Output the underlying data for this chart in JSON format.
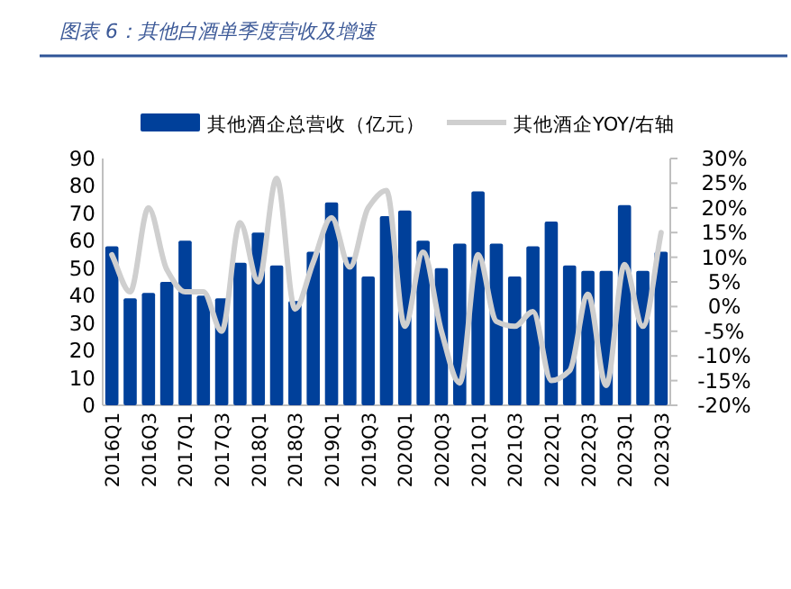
{
  "chart_data": {
    "type": "bar",
    "title": "图表 6：其他白酒单季度营收及增速",
    "categories": [
      "2016Q1",
      null,
      "2016Q3",
      null,
      "2017Q1",
      null,
      "2017Q3",
      null,
      "2018Q1",
      null,
      "2018Q3",
      null,
      "2019Q1",
      null,
      "2019Q3",
      null,
      "2020Q1",
      null,
      "2020Q3",
      null,
      "2021Q1",
      null,
      "2021Q3",
      null,
      "2022Q1",
      null,
      "2022Q3",
      null,
      "2023Q1",
      null,
      "2023Q3"
    ],
    "series": [
      {
        "name": "其他酒企总营收（亿元）",
        "color": "#00409a",
        "values": [
          58,
          39,
          41,
          45,
          60,
          40,
          39,
          52,
          63,
          51,
          38,
          56,
          74,
          54,
          47,
          69,
          71,
          60,
          50,
          59,
          78,
          59,
          47,
          58,
          67,
          51,
          49,
          49,
          73,
          49,
          56
        ]
      },
      {
        "type": "line",
        "name": "其他酒企YOY/右轴",
        "color": "#cfcfcf",
        "axis": "y2",
        "values": [
          10.5,
          3,
          20,
          7.5,
          3,
          3,
          -5,
          17,
          5,
          26,
          -0.5,
          9,
          18,
          8,
          20,
          23.5,
          -4,
          11,
          -5,
          -15.5,
          10.5,
          -3,
          -4,
          -1,
          -15,
          -13,
          2.5,
          -16,
          8.5,
          -4,
          15
        ]
      }
    ],
    "ylim": [
      0,
      90
    ],
    "yticks": [
      0,
      10,
      20,
      30,
      40,
      50,
      60,
      70,
      80,
      90
    ],
    "y2lim": [
      -20,
      30
    ],
    "y2ticks": [
      {
        "value": -20,
        "label": "-20%"
      },
      {
        "value": -15,
        "label": "-15%"
      },
      {
        "value": -10,
        "label": "-10%"
      },
      {
        "value": -5,
        "label": "-5%"
      },
      {
        "value": 0,
        "label": "0%"
      },
      {
        "value": 5,
        "label": "5%"
      },
      {
        "value": 10,
        "label": "10%"
      },
      {
        "value": 15,
        "label": "15%"
      },
      {
        "value": 20,
        "label": "20%"
      },
      {
        "value": 25,
        "label": "25%"
      },
      {
        "value": 30,
        "label": "30%"
      }
    ],
    "legend": "top"
  }
}
